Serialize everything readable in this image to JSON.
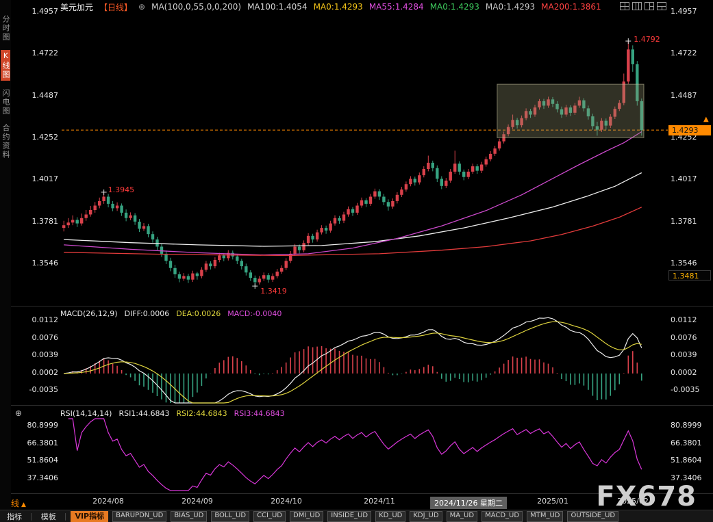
{
  "header": {
    "symbol": "美元加元",
    "period_tag": "【日线】",
    "ma_settings_label": "MA(100,0,55,0,0,200)",
    "ma_values": [
      {
        "name": "ma100",
        "label": "MA100:1.4054",
        "color": "#d8d8d8"
      },
      {
        "name": "ma0-yellow",
        "label": "MA0:1.4293",
        "color": "#f5c518"
      },
      {
        "name": "ma55",
        "label": "MA55:1.4284",
        "color": "#e14fe1"
      },
      {
        "name": "ma0-green",
        "label": "MA0:1.4293",
        "color": "#3ecc5e"
      },
      {
        "name": "ma0-gray",
        "label": "MA0:1.4293",
        "color": "#c8c8c8"
      },
      {
        "name": "ma200",
        "label": "MA200:1.3861",
        "color": "#ff4242"
      }
    ],
    "window_icons": [
      "layout-grid-2x2-icon",
      "layout-3col-icon",
      "layout-1-2-split-icon",
      "layout-2row-split-icon"
    ]
  },
  "icons": {
    "circle_plus": "⊕",
    "up_arrow": "▲"
  },
  "sidebar": {
    "items": [
      {
        "label": "分时图",
        "active": false
      },
      {
        "label": "K线图",
        "active": true
      },
      {
        "label": "闪电图",
        "active": false
      },
      {
        "label": "合约资料",
        "active": false
      }
    ]
  },
  "bottom": {
    "period_label": "日线"
  },
  "watermark": "FX678",
  "toolbar": {
    "tabs": [
      {
        "label": "指标",
        "highlight": false
      },
      {
        "label": "模板",
        "highlight": false
      },
      {
        "label": "VIP指标",
        "highlight": true
      }
    ],
    "buttons": [
      "BARUPDN_UD",
      "BIAS_UD",
      "BOLL_UD",
      "CCI_UD",
      "DMI_UD",
      "INSIDE_UD",
      "KD_UD",
      "KDJ_UD",
      "MA_UD",
      "MACD_UD",
      "MTM_UD",
      "OUTSIDE_UD"
    ]
  },
  "chart_data": [
    {
      "name": "price-panel",
      "type": "candlestick",
      "title": "美元加元 日线",
      "y_axis_labels": [
        "1.4957",
        "1.4722",
        "1.4487",
        "1.4252",
        "1.4017",
        "1.3781",
        "1.3546"
      ],
      "x_ticks": [
        {
          "day": 10,
          "label": "2024/08",
          "highlighted": false
        },
        {
          "day": 30,
          "label": "2024/09",
          "highlighted": false
        },
        {
          "day": 50,
          "label": "2024/10",
          "highlighted": false
        },
        {
          "day": 71,
          "label": "2024/11",
          "highlighted": false
        },
        {
          "day": 91,
          "label": "2024/11/26 星期二",
          "highlighted": true
        },
        {
          "day": 110,
          "label": "2025/01",
          "highlighted": false
        },
        {
          "day": 128,
          "label": "2025/02",
          "highlighted": false
        }
      ],
      "current_price": 1.4293,
      "current_price_label": "1.4293",
      "low_tag_value": 1.3481,
      "low_tag_label": "1.3481",
      "annotations": [
        {
          "day": 9,
          "price": 1.3945,
          "label": "1.3945",
          "text_dx": 6,
          "text_dy": 0
        },
        {
          "day": 43,
          "price": 1.3419,
          "label": "1.3419",
          "text_dx": 8,
          "text_dy": 11
        },
        {
          "day": 127,
          "price": 1.4792,
          "label": "1.4792",
          "text_dx": 8,
          "text_dy": 1
        }
      ],
      "highlight_box": {
        "day_start": 98,
        "day_end": 131,
        "price_top": 1.455,
        "price_bottom": 1.425
      },
      "ma_lines": [
        {
          "name": "MA100",
          "color": "#ededed",
          "points": [
            [
              0,
              1.368
            ],
            [
              15,
              1.3662
            ],
            [
              30,
              1.365
            ],
            [
              45,
              1.3642
            ],
            [
              58,
              1.3646
            ],
            [
              70,
              1.3668
            ],
            [
              80,
              1.37
            ],
            [
              90,
              1.3745
            ],
            [
              100,
              1.38
            ],
            [
              110,
              1.3862
            ],
            [
              118,
              1.3925
            ],
            [
              124,
              1.3978
            ],
            [
              130,
              1.4054
            ]
          ]
        },
        {
          "name": "MA55",
          "color": "#cb49cb",
          "points": [
            [
              0,
              1.365
            ],
            [
              15,
              1.3625
            ],
            [
              30,
              1.3606
            ],
            [
              45,
              1.3593
            ],
            [
              55,
              1.36
            ],
            [
              65,
              1.3632
            ],
            [
              75,
              1.3686
            ],
            [
              85,
              1.3756
            ],
            [
              95,
              1.3842
            ],
            [
              103,
              1.393
            ],
            [
              110,
              1.4022
            ],
            [
              116,
              1.41
            ],
            [
              122,
              1.4175
            ],
            [
              126,
              1.4222
            ],
            [
              130,
              1.4284
            ]
          ]
        },
        {
          "name": "MA200",
          "color": "#e23b3b",
          "points": [
            [
              0,
              1.3608
            ],
            [
              25,
              1.3596
            ],
            [
              50,
              1.359
            ],
            [
              71,
              1.36
            ],
            [
              85,
              1.362
            ],
            [
              95,
              1.364
            ],
            [
              105,
              1.3672
            ],
            [
              112,
              1.3708
            ],
            [
              119,
              1.3755
            ],
            [
              125,
              1.3805
            ],
            [
              130,
              1.3861
            ]
          ]
        }
      ],
      "candles": [
        [
          1.3745,
          1.3785,
          1.3725,
          1.376
        ],
        [
          1.376,
          1.38,
          1.3745,
          1.3775
        ],
        [
          1.3775,
          1.3815,
          1.376,
          1.379
        ],
        [
          1.379,
          1.3805,
          1.375,
          1.377
        ],
        [
          1.377,
          1.3825,
          1.3758,
          1.38
        ],
        [
          1.38,
          1.3845,
          1.3785,
          1.382
        ],
        [
          1.382,
          1.3868,
          1.3808,
          1.3845
        ],
        [
          1.3845,
          1.389,
          1.383,
          1.387
        ],
        [
          1.387,
          1.3915,
          1.3855,
          1.3895
        ],
        [
          1.3895,
          1.3945,
          1.388,
          1.392
        ],
        [
          1.392,
          1.3935,
          1.386,
          1.388
        ],
        [
          1.388,
          1.3895,
          1.3838,
          1.3855
        ],
        [
          1.3855,
          1.3888,
          1.384,
          1.387
        ],
        [
          1.387,
          1.3882,
          1.3812,
          1.383
        ],
        [
          1.383,
          1.3848,
          1.3782,
          1.38
        ],
        [
          1.38,
          1.3832,
          1.3788,
          1.3815
        ],
        [
          1.3815,
          1.3828,
          1.3762,
          1.378
        ],
        [
          1.378,
          1.3795,
          1.3722,
          1.374
        ],
        [
          1.374,
          1.3772,
          1.3728,
          1.3755
        ],
        [
          1.3755,
          1.3768,
          1.3692,
          1.371
        ],
        [
          1.371,
          1.3725,
          1.3662,
          1.368
        ],
        [
          1.368,
          1.3695,
          1.3622,
          1.364
        ],
        [
          1.364,
          1.3658,
          1.3582,
          1.36
        ],
        [
          1.36,
          1.3618,
          1.3542,
          1.356
        ],
        [
          1.356,
          1.3578,
          1.3502,
          1.352
        ],
        [
          1.352,
          1.3538,
          1.3465,
          1.3485
        ],
        [
          1.3485,
          1.35,
          1.344,
          1.346
        ],
        [
          1.346,
          1.3492,
          1.3448,
          1.3475
        ],
        [
          1.3475,
          1.3488,
          1.3436,
          1.3455
        ],
        [
          1.3455,
          1.3505,
          1.3442,
          1.349
        ],
        [
          1.349,
          1.3498,
          1.3455,
          1.3475
        ],
        [
          1.3475,
          1.3525,
          1.3462,
          1.351
        ],
        [
          1.351,
          1.356,
          1.3498,
          1.3545
        ],
        [
          1.3545,
          1.3558,
          1.3512,
          1.353
        ],
        [
          1.353,
          1.358,
          1.3518,
          1.3565
        ],
        [
          1.3565,
          1.3605,
          1.3552,
          1.359
        ],
        [
          1.359,
          1.3602,
          1.3558,
          1.3575
        ],
        [
          1.3575,
          1.362,
          1.3562,
          1.3605
        ],
        [
          1.3605,
          1.3618,
          1.3568,
          1.3585
        ],
        [
          1.3585,
          1.3598,
          1.3542,
          1.356
        ],
        [
          1.356,
          1.3572,
          1.3512,
          1.353
        ],
        [
          1.353,
          1.3545,
          1.3478,
          1.3495
        ],
        [
          1.3495,
          1.3508,
          1.3448,
          1.3465
        ],
        [
          1.3465,
          1.3478,
          1.3419,
          1.344
        ],
        [
          1.344,
          1.3475,
          1.3428,
          1.346
        ],
        [
          1.346,
          1.3495,
          1.3448,
          1.348
        ],
        [
          1.348,
          1.3492,
          1.3438,
          1.3455
        ],
        [
          1.3455,
          1.349,
          1.3442,
          1.3475
        ],
        [
          1.3475,
          1.3515,
          1.3462,
          1.35
        ],
        [
          1.35,
          1.3535,
          1.3488,
          1.352
        ],
        [
          1.352,
          1.3575,
          1.3508,
          1.356
        ],
        [
          1.356,
          1.3615,
          1.3548,
          1.36
        ],
        [
          1.36,
          1.3655,
          1.3588,
          1.364
        ],
        [
          1.364,
          1.3652,
          1.3602,
          1.362
        ],
        [
          1.362,
          1.3675,
          1.3608,
          1.366
        ],
        [
          1.366,
          1.3715,
          1.3648,
          1.37
        ],
        [
          1.37,
          1.3712,
          1.3662,
          1.368
        ],
        [
          1.368,
          1.3735,
          1.3668,
          1.372
        ],
        [
          1.372,
          1.376,
          1.3708,
          1.3745
        ],
        [
          1.3745,
          1.3758,
          1.3712,
          1.373
        ],
        [
          1.373,
          1.3785,
          1.3718,
          1.377
        ],
        [
          1.377,
          1.3815,
          1.3758,
          1.38
        ],
        [
          1.38,
          1.3812,
          1.3768,
          1.3785
        ],
        [
          1.3785,
          1.3835,
          1.3772,
          1.382
        ],
        [
          1.382,
          1.3865,
          1.3808,
          1.385
        ],
        [
          1.385,
          1.3862,
          1.3812,
          1.383
        ],
        [
          1.383,
          1.3885,
          1.3818,
          1.387
        ],
        [
          1.387,
          1.3915,
          1.3858,
          1.39
        ],
        [
          1.39,
          1.3912,
          1.3862,
          1.388
        ],
        [
          1.388,
          1.3935,
          1.3868,
          1.392
        ],
        [
          1.392,
          1.3965,
          1.3908,
          1.395
        ],
        [
          1.395,
          1.3962,
          1.3902,
          1.392
        ],
        [
          1.392,
          1.3935,
          1.3872,
          1.389
        ],
        [
          1.389,
          1.3905,
          1.3842,
          1.3865
        ],
        [
          1.3865,
          1.391,
          1.3852,
          1.3895
        ],
        [
          1.3895,
          1.3945,
          1.3882,
          1.393
        ],
        [
          1.393,
          1.3975,
          1.3918,
          1.396
        ],
        [
          1.396,
          1.4005,
          1.3948,
          1.399
        ],
        [
          1.399,
          1.4035,
          1.3978,
          1.402
        ],
        [
          1.402,
          1.4032,
          1.3982,
          1.4
        ],
        [
          1.4,
          1.4055,
          1.3988,
          1.404
        ],
        [
          1.404,
          1.409,
          1.4028,
          1.4075
        ],
        [
          1.4075,
          1.415,
          1.4062,
          1.411
        ],
        [
          1.411,
          1.4122,
          1.4062,
          1.408
        ],
        [
          1.408,
          1.4095,
          1.4002,
          1.402
        ],
        [
          1.402,
          1.4035,
          1.3962,
          1.398
        ],
        [
          1.398,
          1.4025,
          1.3968,
          1.401
        ],
        [
          1.401,
          1.4075,
          1.3998,
          1.406
        ],
        [
          1.406,
          1.4178,
          1.4048,
          1.4105
        ],
        [
          1.4105,
          1.4118,
          1.4042,
          1.406
        ],
        [
          1.406,
          1.4072,
          1.4012,
          1.403
        ],
        [
          1.403,
          1.4075,
          1.4018,
          1.406
        ],
        [
          1.406,
          1.4105,
          1.4048,
          1.409
        ],
        [
          1.409,
          1.4102,
          1.4048,
          1.4065
        ],
        [
          1.4065,
          1.4115,
          1.4052,
          1.41
        ],
        [
          1.41,
          1.4145,
          1.4088,
          1.413
        ],
        [
          1.413,
          1.4175,
          1.4118,
          1.416
        ],
        [
          1.416,
          1.4205,
          1.4148,
          1.419
        ],
        [
          1.419,
          1.4245,
          1.4178,
          1.423
        ],
        [
          1.423,
          1.4285,
          1.4218,
          1.427
        ],
        [
          1.427,
          1.4325,
          1.4258,
          1.431
        ],
        [
          1.431,
          1.438,
          1.4298,
          1.435
        ],
        [
          1.435,
          1.4362,
          1.4302,
          1.432
        ],
        [
          1.432,
          1.4375,
          1.4308,
          1.436
        ],
        [
          1.436,
          1.4415,
          1.4348,
          1.44
        ],
        [
          1.44,
          1.4412,
          1.4362,
          1.438
        ],
        [
          1.438,
          1.4435,
          1.4368,
          1.442
        ],
        [
          1.442,
          1.4467,
          1.4408,
          1.4455
        ],
        [
          1.4455,
          1.4468,
          1.4412,
          1.443
        ],
        [
          1.443,
          1.448,
          1.4418,
          1.4465
        ],
        [
          1.4465,
          1.4478,
          1.4422,
          1.444
        ],
        [
          1.444,
          1.4455,
          1.4392,
          1.441
        ],
        [
          1.441,
          1.4425,
          1.4362,
          1.438
        ],
        [
          1.438,
          1.4435,
          1.4368,
          1.442
        ],
        [
          1.442,
          1.4432,
          1.4372,
          1.439
        ],
        [
          1.439,
          1.4445,
          1.4378,
          1.443
        ],
        [
          1.443,
          1.448,
          1.4418,
          1.446
        ],
        [
          1.446,
          1.4472,
          1.4398,
          1.4415
        ],
        [
          1.4415,
          1.443,
          1.4352,
          1.437
        ],
        [
          1.437,
          1.4385,
          1.4295,
          1.4315
        ],
        [
          1.4315,
          1.434,
          1.4262,
          1.4295
        ],
        [
          1.4295,
          1.436,
          1.4282,
          1.4345
        ],
        [
          1.4345,
          1.4358,
          1.4295,
          1.4318
        ],
        [
          1.4318,
          1.4382,
          1.4305,
          1.4368
        ],
        [
          1.4368,
          1.4425,
          1.4355,
          1.4412
        ],
        [
          1.4412,
          1.4462,
          1.44,
          1.4445
        ],
        [
          1.4445,
          1.461,
          1.4432,
          1.4565
        ],
        [
          1.4565,
          1.4792,
          1.4552,
          1.4745
        ],
        [
          1.4745,
          1.4768,
          1.462,
          1.4662
        ],
        [
          1.4662,
          1.468,
          1.443,
          1.4455
        ],
        [
          1.4455,
          1.447,
          1.4262,
          1.4293
        ]
      ],
      "up_color": "#d9414b",
      "down_color": "#36a381"
    },
    {
      "name": "macd-panel",
      "type": "macd",
      "title": "MACD(26,12,9)",
      "values": [
        {
          "label": "DIFF:0.0006",
          "color": "#ececec"
        },
        {
          "label": "DEA:0.0026",
          "color": "#e3da3e"
        },
        {
          "label": "MACD:-0.0040",
          "color": "#e14fe1"
        }
      ],
      "params": {
        "slow": 26,
        "fast": 12,
        "signal": 9
      },
      "y_axis_labels": [
        "0.0112",
        "0.0076",
        "0.0039",
        "0.0002",
        "-0.0035"
      ],
      "diff_color": "#ececec",
      "dea_color": "#ddd23e"
    },
    {
      "name": "rsi-panel",
      "type": "line",
      "title": "RSI(14,14,14)",
      "values": [
        {
          "label": "RSI1:44.6843",
          "color": "#ececec"
        },
        {
          "label": "RSI2:44.6843",
          "color": "#e3da3e"
        },
        {
          "label": "RSI3:44.6843",
          "color": "#e14fe1"
        }
      ],
      "params": {
        "period": 14
      },
      "y_axis_labels": [
        "80.8999",
        "66.3801",
        "51.8604",
        "37.3406"
      ],
      "line_color": "#d936d9"
    }
  ]
}
